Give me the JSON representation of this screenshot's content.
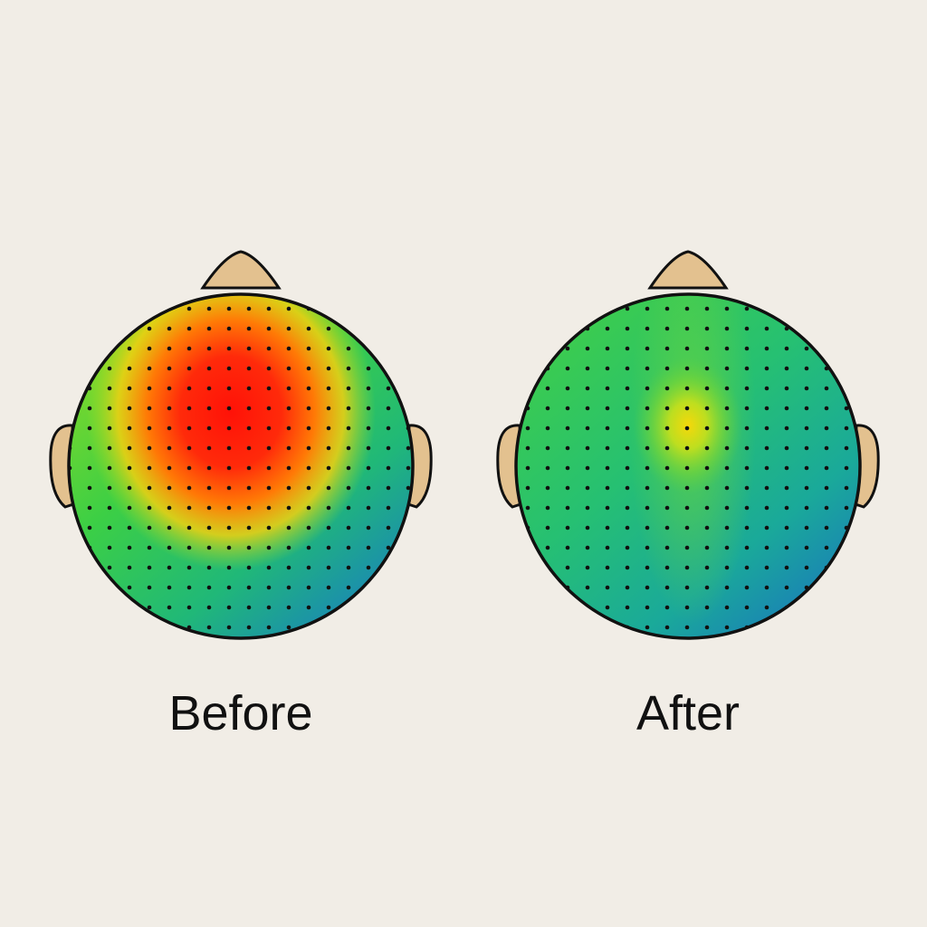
{
  "panels": [
    {
      "label": "Before"
    },
    {
      "label": "After"
    }
  ]
}
